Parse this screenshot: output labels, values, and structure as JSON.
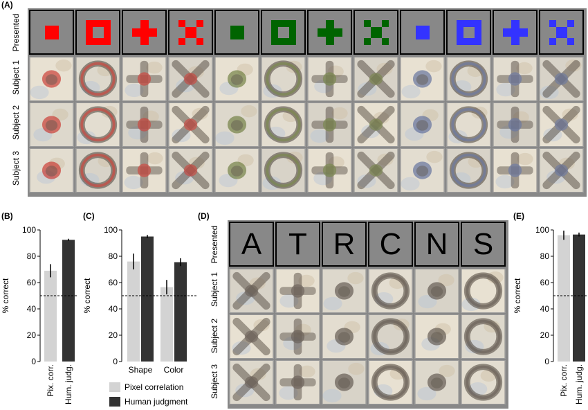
{
  "panels": {
    "a": "(A)",
    "b": "(B)",
    "c": "(C)",
    "d": "(D)",
    "e": "(E)"
  },
  "rows_a": {
    "presented": "Presented",
    "s1": "Subject 1",
    "s2": "Subject 2",
    "s3": "Subject 3"
  },
  "stimuli_a": [
    {
      "shape": "square",
      "color": "#ff0000"
    },
    {
      "shape": "frame",
      "color": "#ff0000"
    },
    {
      "shape": "plus",
      "color": "#ff0000"
    },
    {
      "shape": "x",
      "color": "#ff0000"
    },
    {
      "shape": "square",
      "color": "#006400"
    },
    {
      "shape": "frame",
      "color": "#006400"
    },
    {
      "shape": "plus",
      "color": "#006400"
    },
    {
      "shape": "x",
      "color": "#006400"
    },
    {
      "shape": "square",
      "color": "#3333ff"
    },
    {
      "shape": "frame",
      "color": "#3333ff"
    },
    {
      "shape": "plus",
      "color": "#3333ff"
    },
    {
      "shape": "x",
      "color": "#3333ff"
    }
  ],
  "rows_d": {
    "presented": "Presented",
    "s1": "Subject 1",
    "s2": "Subject 2",
    "s3": "Subject 3"
  },
  "letters_d": [
    "A",
    "T",
    "R",
    "C",
    "N",
    "S"
  ],
  "legend": {
    "pixel": "Pixel correlation",
    "human": "Human judgment",
    "pixel_color": "#d3d3d3",
    "human_color": "#333333"
  },
  "chart_data": [
    {
      "panel": "B",
      "type": "bar",
      "categories": [
        "Pix. corr.",
        "Hum. judg."
      ],
      "values": [
        69,
        92.5
      ],
      "errors": [
        5,
        0.8
      ],
      "ylabel": "% correct",
      "ylim": [
        0,
        100
      ],
      "yticks": [
        0,
        20,
        40,
        60,
        80,
        100
      ],
      "chance": 50
    },
    {
      "panel": "C",
      "type": "bar",
      "categories": [
        "Shape",
        "Color"
      ],
      "series": [
        {
          "name": "Pixel correlation",
          "values": [
            76,
            56.5
          ],
          "errors": [
            6,
            5.5
          ]
        },
        {
          "name": "Human judgment",
          "values": [
            95,
            75.5
          ],
          "errors": [
            1.2,
            3
          ]
        }
      ],
      "ylabel": "% correct",
      "ylim": [
        0,
        100
      ],
      "yticks": [
        0,
        20,
        40,
        60,
        80,
        100
      ],
      "chance": 50
    },
    {
      "panel": "E",
      "type": "bar",
      "categories": [
        "Pix. corr.",
        "Hum. judg."
      ],
      "values": [
        96,
        96.5
      ],
      "errors": [
        3.5,
        1.5
      ],
      "ylabel": "% correct",
      "ylim": [
        0,
        100
      ],
      "yticks": [
        0,
        20,
        40,
        60,
        80,
        100
      ],
      "chance": 50
    }
  ]
}
